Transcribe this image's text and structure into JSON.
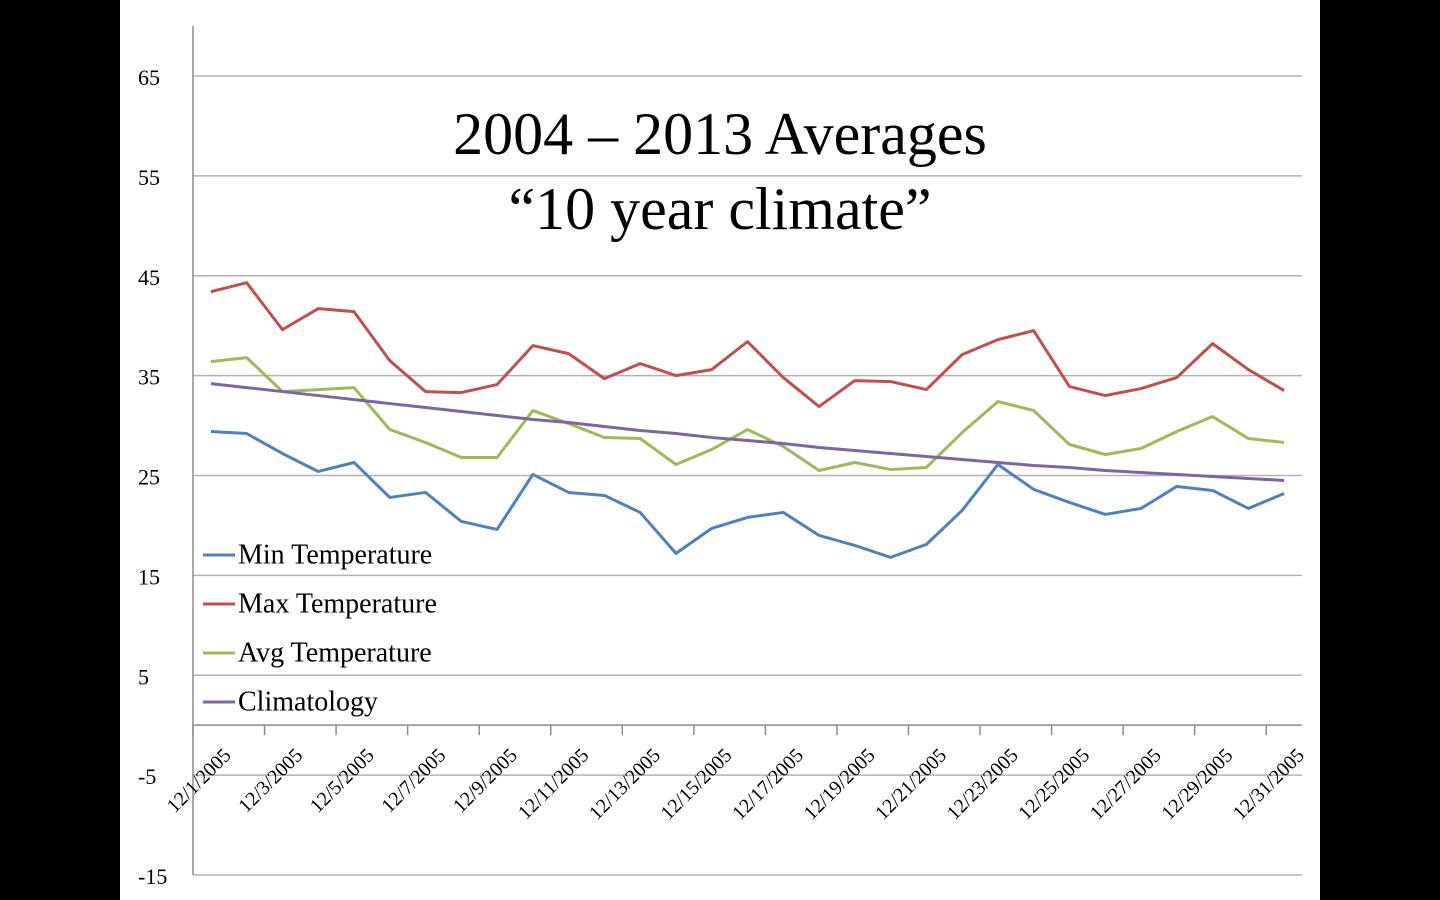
{
  "chart_data": {
    "type": "line",
    "title": [
      "2004 – 2013 Averages",
      "“10 year climate”"
    ],
    "categories": [
      "12/1/2005",
      null,
      "12/3/2005",
      null,
      "12/5/2005",
      null,
      "12/7/2005",
      null,
      "12/9/2005",
      null,
      "12/11/2005",
      null,
      "12/13/2005",
      null,
      "12/15/2005",
      null,
      "12/17/2005",
      null,
      "12/19/2005",
      null,
      "12/21/2005",
      null,
      "12/23/2005",
      null,
      "12/25/2005",
      null,
      "12/27/2005",
      null,
      "12/29/2005",
      null,
      "12/31/2005"
    ],
    "series": [
      {
        "name": "Min Temperature",
        "color": "#4f81bd",
        "values": [
          29.4,
          29.2,
          27.2,
          25.4,
          26.3,
          22.8,
          23.3,
          20.4,
          19.6,
          25.1,
          23.3,
          23.0,
          21.3,
          17.2,
          19.7,
          20.8,
          21.3,
          19.0,
          18.0,
          16.8,
          18.1,
          21.5,
          26.1,
          23.6,
          22.3,
          21.1,
          21.7,
          23.9,
          23.5,
          21.7,
          23.2
        ]
      },
      {
        "name": "Max Temperature",
        "color": "#c0504d",
        "values": [
          43.4,
          44.3,
          39.6,
          41.7,
          41.4,
          36.5,
          33.4,
          33.3,
          34.1,
          38.0,
          37.2,
          34.7,
          36.2,
          35.0,
          35.6,
          38.4,
          34.8,
          31.9,
          34.5,
          34.4,
          33.6,
          37.1,
          38.6,
          39.5,
          33.9,
          33.0,
          33.7,
          34.8,
          38.2,
          35.6,
          33.5
        ]
      },
      {
        "name": "Avg Temperature",
        "color": "#9bbb59",
        "values": [
          36.4,
          36.8,
          33.4,
          33.6,
          33.8,
          29.6,
          28.3,
          26.8,
          26.8,
          31.5,
          30.2,
          28.8,
          28.7,
          26.1,
          27.6,
          29.6,
          27.9,
          25.5,
          26.3,
          25.6,
          25.8,
          29.3,
          32.4,
          31.5,
          28.1,
          27.1,
          27.7,
          29.4,
          30.9,
          28.7,
          28.3
        ]
      },
      {
        "name": "Climatology",
        "color": "#8064a2",
        "values": [
          34.2,
          33.8,
          33.4,
          33.0,
          32.6,
          32.2,
          31.8,
          31.4,
          31.0,
          30.6,
          30.3,
          29.9,
          29.5,
          29.2,
          28.8,
          28.5,
          28.2,
          27.8,
          27.5,
          27.2,
          26.9,
          26.6,
          26.3,
          26.0,
          25.8,
          25.5,
          25.3,
          25.1,
          24.9,
          24.7,
          24.5
        ]
      }
    ],
    "ylim": [
      -15,
      70
    ],
    "yticks": [
      -15,
      -5,
      5,
      15,
      25,
      35,
      45,
      55,
      65
    ],
    "grid": true,
    "legend": "left"
  }
}
